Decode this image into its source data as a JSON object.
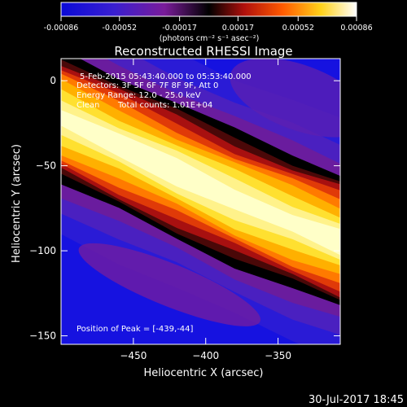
{
  "colorbar": {
    "tick_labels": [
      "-0.00086",
      "-0.00052",
      "-0.00017",
      "0.00017",
      "0.00052",
      "0.00086"
    ],
    "tick_values": [
      -0.00086,
      -0.00052,
      -0.00017,
      0.00017,
      0.00052,
      0.00086
    ],
    "range": [
      -0.00086,
      0.00086
    ],
    "unit_label": "(photons cm⁻² s⁻¹ asec⁻²)"
  },
  "chart_data": {
    "type": "heatmap",
    "title": "Reconstructed RHESSI Image",
    "xlabel": "Heliocentric X (arcsec)",
    "ylabel": "Heliocentric Y (arcsec)",
    "xlim": [
      -500,
      -307
    ],
    "ylim": [
      -155,
      13
    ],
    "x_ticks": [
      -450,
      -400,
      -350
    ],
    "x_tick_labels": [
      "−450",
      "−400",
      "−350"
    ],
    "y_ticks": [
      0,
      -50,
      -100,
      -150
    ],
    "y_tick_labels": [
      "0",
      "−50",
      "−100",
      "−150"
    ],
    "colormap": "blue-purple-red-orange-yellow-white",
    "peak_position": [
      -439,
      -44
    ],
    "ridge": [
      {
        "x": -500,
        "y": -22
      },
      {
        "x": -460,
        "y": -38
      },
      {
        "x": -420,
        "y": -54
      },
      {
        "x": -380,
        "y": -70
      },
      {
        "x": -340,
        "y": -84
      },
      {
        "x": -307,
        "y": -95
      }
    ]
  },
  "annotations": {
    "time_range": "5-Feb-2015 05:43:40.000 to 05:53:40.000",
    "detectors": "Detectors: 3F 5F 6F 7F 8F 9F, Att 0",
    "energy": "Energy Range: 12.0 - 25.0 keV",
    "algorithm": "Clean",
    "counts": "Total counts: 1.01E+04",
    "peak": "Position of Peak = [-439,-44]"
  },
  "footer": {
    "timestamp": "30-Jul-2017 18:45"
  },
  "colors": {
    "background": "#000000",
    "text": "#ffffff",
    "low": "#1a17e8",
    "mid": "#d92b10",
    "high": "#ffffff"
  }
}
